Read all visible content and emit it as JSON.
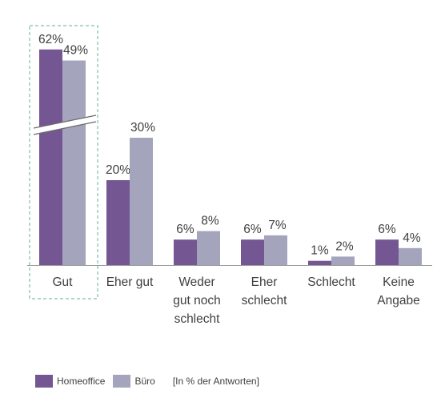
{
  "chart_data": {
    "type": "bar",
    "categories": [
      [
        "Gut"
      ],
      [
        "Eher gut"
      ],
      [
        "Weder",
        "gut noch",
        "schlecht"
      ],
      [
        "Eher",
        "schlecht"
      ],
      [
        "Schlecht"
      ],
      [
        "Keine",
        "Angabe"
      ]
    ],
    "series": [
      {
        "name": "Homeoffice",
        "values": [
          62,
          20,
          6,
          6,
          1,
          6
        ],
        "labels": [
          "62%",
          "20%",
          "6%",
          "6%",
          "1%",
          "6%"
        ]
      },
      {
        "name": "Büro",
        "values": [
          49,
          30,
          8,
          7,
          2,
          4
        ],
        "labels": [
          "49%",
          "30%",
          "8%",
          "7%",
          "2%",
          "4%"
        ]
      }
    ],
    "axis_break": true,
    "highlighted_category": "Gut",
    "colors": {
      "Homeoffice": "#735692",
      "Büro": "#a4a5bd",
      "axis": "#999999",
      "highlight_border": "#7fbfac"
    },
    "legend": {
      "position": "bottom-left",
      "note": "[In % der Antworten]"
    }
  }
}
